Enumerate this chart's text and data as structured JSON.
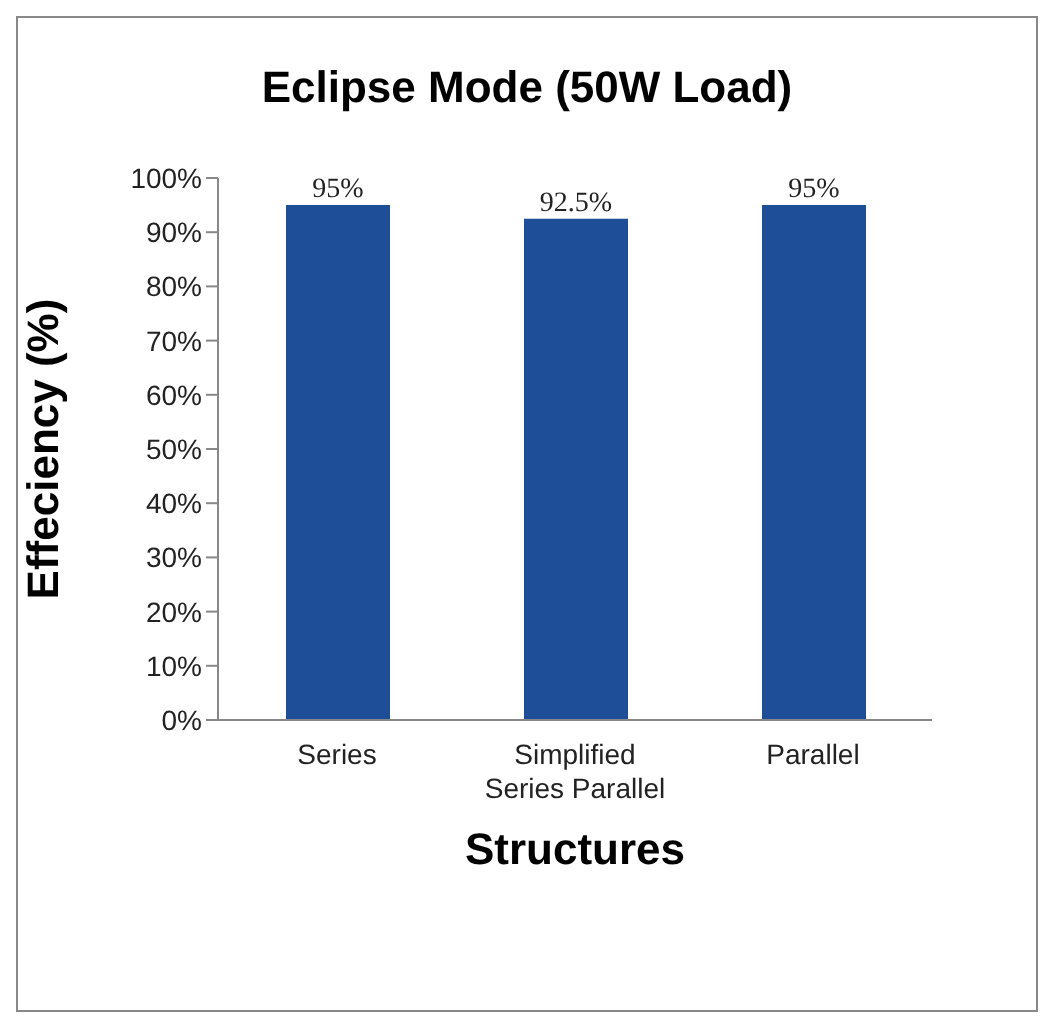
{
  "chart_data": {
    "type": "bar",
    "title": "Eclipse Mode (50W Load)",
    "xlabel": "Structures",
    "ylabel": "Effeciency (%)",
    "categories": [
      "Series",
      "Simplified Series Parallel",
      "Parallel"
    ],
    "values": [
      95,
      92.5,
      95
    ],
    "color": "#1f4e99",
    "value_labels": [
      "95%",
      "92.5%",
      "95%"
    ],
    "ylim": [
      0,
      100
    ],
    "yticks": [
      {
        "value": 0,
        "label": "0%"
      },
      {
        "value": 10,
        "label": "10%"
      },
      {
        "value": 20,
        "label": "20%"
      },
      {
        "value": 30,
        "label": "30%"
      },
      {
        "value": 40,
        "label": "40%"
      },
      {
        "value": 50,
        "label": "50%"
      },
      {
        "value": 60,
        "label": "60%"
      },
      {
        "value": 70,
        "label": "70%"
      },
      {
        "value": 80,
        "label": "80%"
      },
      {
        "value": 90,
        "label": "90%"
      },
      {
        "value": 100,
        "label": "100%"
      }
    ],
    "grid": false,
    "legend": false
  }
}
